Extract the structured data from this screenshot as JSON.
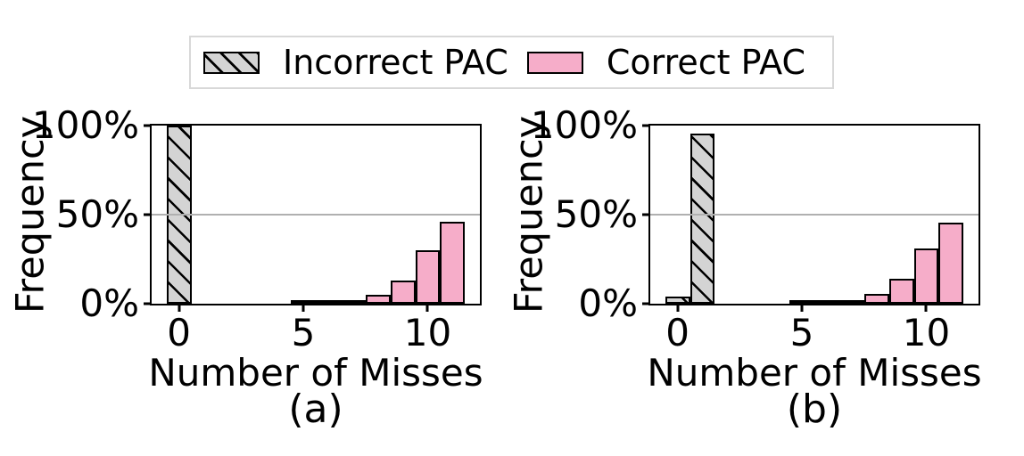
{
  "colors": {
    "pink": "#f6adc9",
    "gray_fill": "#d4d4d4",
    "edge": "#000000",
    "grid": "#b0b0b0",
    "legend_border": "#d8d8d8"
  },
  "legend": {
    "items": [
      {
        "label": "Incorrect PAC",
        "style": "hatched-gray"
      },
      {
        "label": "Correct PAC",
        "style": "pink"
      }
    ]
  },
  "chart_data": [
    {
      "type": "bar",
      "caption": "(a)",
      "xlabel": "Number of Misses",
      "ylabel": "Frequency",
      "xlim": [
        -1.1,
        12.1
      ],
      "ylim": [
        0,
        100
      ],
      "bin_width": 1,
      "grid_values": [
        50
      ],
      "xticks": [
        {
          "value": 0,
          "label": "0"
        },
        {
          "value": 5,
          "label": "5"
        },
        {
          "value": 10,
          "label": "10"
        }
      ],
      "yticks": [
        {
          "value": 0,
          "label": "0%"
        },
        {
          "value": 50,
          "label": "50%"
        },
        {
          "value": 100,
          "label": "100%"
        }
      ],
      "series": [
        {
          "name": "Incorrect PAC",
          "style": "hatched-gray",
          "points": [
            {
              "x": 0,
              "y": 100
            }
          ]
        },
        {
          "name": "Correct PAC",
          "style": "pink",
          "points": [
            {
              "x": 5,
              "y": 0.4
            },
            {
              "x": 6,
              "y": 0.8
            },
            {
              "x": 7,
              "y": 1.5
            },
            {
              "x": 8,
              "y": 4.9
            },
            {
              "x": 9,
              "y": 13
            },
            {
              "x": 10,
              "y": 30
            },
            {
              "x": 11,
              "y": 46
            }
          ]
        }
      ]
    },
    {
      "type": "bar",
      "caption": "(b)",
      "xlabel": "Number of Misses",
      "ylabel": "Frequency",
      "xlim": [
        -1.1,
        12.1
      ],
      "ylim": [
        0,
        100
      ],
      "bin_width": 1,
      "grid_values": [
        50
      ],
      "xticks": [
        {
          "value": 0,
          "label": "0"
        },
        {
          "value": 5,
          "label": "5"
        },
        {
          "value": 10,
          "label": "10"
        }
      ],
      "yticks": [
        {
          "value": 0,
          "label": "0%"
        },
        {
          "value": 50,
          "label": "50%"
        },
        {
          "value": 100,
          "label": "100%"
        }
      ],
      "series": [
        {
          "name": "Incorrect PAC",
          "style": "hatched-gray",
          "points": [
            {
              "x": 0,
              "y": 4
            },
            {
              "x": 1,
              "y": 95.5
            }
          ]
        },
        {
          "name": "Correct PAC",
          "style": "pink",
          "points": [
            {
              "x": 5,
              "y": 0.3
            },
            {
              "x": 6,
              "y": 0.6
            },
            {
              "x": 7,
              "y": 1.8
            },
            {
              "x": 8,
              "y": 5.3
            },
            {
              "x": 9,
              "y": 14
            },
            {
              "x": 10,
              "y": 31
            },
            {
              "x": 11,
              "y": 45.5
            }
          ]
        }
      ]
    }
  ]
}
